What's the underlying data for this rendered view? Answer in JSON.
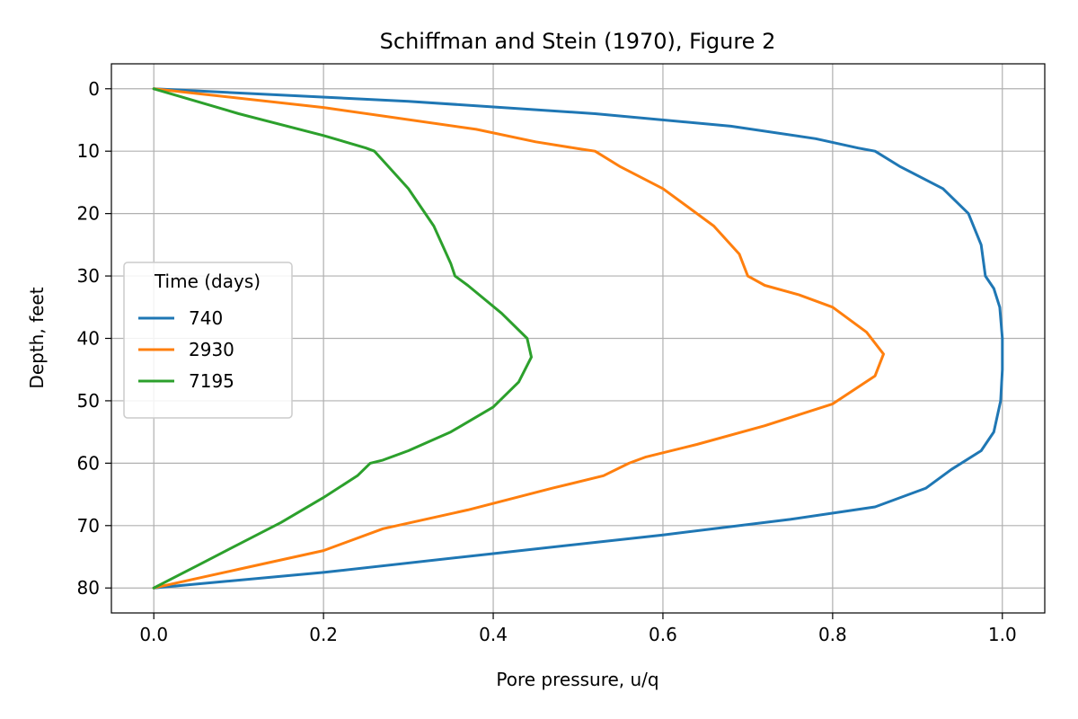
{
  "chart_data": {
    "type": "line",
    "title": "Schiffman and Stein (1970), Figure 2",
    "xlabel": "Pore pressure, u/q",
    "ylabel": "Depth, feet",
    "xlim": [
      -0.05,
      1.05
    ],
    "ylim": [
      84,
      -4
    ],
    "y_inverted": true,
    "grid": true,
    "xticks": [
      "0.0",
      "0.2",
      "0.4",
      "0.6",
      "0.8",
      "1.0"
    ],
    "yticks": [
      "0",
      "10",
      "20",
      "30",
      "40",
      "50",
      "60",
      "70",
      "80"
    ],
    "legend": {
      "title": "Time (days)",
      "placement": "center-left"
    },
    "series": [
      {
        "name": "740",
        "color": "#1f77b4",
        "points": [
          [
            0,
            0
          ],
          [
            0.3,
            2
          ],
          [
            0.52,
            4
          ],
          [
            0.68,
            6
          ],
          [
            0.78,
            8
          ],
          [
            0.83,
            9.5
          ],
          [
            0.85,
            10
          ],
          [
            0.88,
            12.5
          ],
          [
            0.93,
            16
          ],
          [
            0.96,
            20
          ],
          [
            0.975,
            25
          ],
          [
            0.98,
            30
          ],
          [
            0.99,
            32
          ],
          [
            0.997,
            35
          ],
          [
            1.0,
            40
          ],
          [
            1.0,
            45
          ],
          [
            0.998,
            50
          ],
          [
            0.99,
            55
          ],
          [
            0.975,
            58
          ],
          [
            0.94,
            61
          ],
          [
            0.91,
            64
          ],
          [
            0.85,
            67
          ],
          [
            0.75,
            69
          ],
          [
            0.6,
            71.5
          ],
          [
            0.4,
            74.5
          ],
          [
            0.2,
            77.5
          ],
          [
            0.08,
            79
          ],
          [
            0,
            80
          ]
        ]
      },
      {
        "name": "2930",
        "color": "#ff7f0e",
        "points": [
          [
            0,
            0
          ],
          [
            0.2,
            3
          ],
          [
            0.38,
            6.5
          ],
          [
            0.45,
            8.5
          ],
          [
            0.5,
            9.6
          ],
          [
            0.52,
            10
          ],
          [
            0.55,
            12.5
          ],
          [
            0.6,
            16
          ],
          [
            0.66,
            22
          ],
          [
            0.69,
            26.5
          ],
          [
            0.7,
            30
          ],
          [
            0.72,
            31.5
          ],
          [
            0.76,
            33
          ],
          [
            0.8,
            35
          ],
          [
            0.84,
            39
          ],
          [
            0.86,
            42.5
          ],
          [
            0.85,
            46
          ],
          [
            0.8,
            50.5
          ],
          [
            0.72,
            54
          ],
          [
            0.64,
            57
          ],
          [
            0.58,
            59
          ],
          [
            0.56,
            60
          ],
          [
            0.53,
            62
          ],
          [
            0.47,
            64
          ],
          [
            0.37,
            67.5
          ],
          [
            0.27,
            70.5
          ],
          [
            0.2,
            74
          ],
          [
            0.1,
            77
          ],
          [
            0,
            80
          ]
        ]
      },
      {
        "name": "7195",
        "color": "#2ca02c",
        "points": [
          [
            0,
            0
          ],
          [
            0.1,
            4
          ],
          [
            0.2,
            7.5
          ],
          [
            0.25,
            9.5
          ],
          [
            0.26,
            10
          ],
          [
            0.27,
            11.5
          ],
          [
            0.3,
            16
          ],
          [
            0.33,
            22
          ],
          [
            0.35,
            28
          ],
          [
            0.355,
            30
          ],
          [
            0.37,
            31.5
          ],
          [
            0.41,
            36
          ],
          [
            0.44,
            40
          ],
          [
            0.445,
            43
          ],
          [
            0.43,
            47
          ],
          [
            0.4,
            51
          ],
          [
            0.35,
            55
          ],
          [
            0.3,
            58
          ],
          [
            0.27,
            59.5
          ],
          [
            0.255,
            60
          ],
          [
            0.24,
            62
          ],
          [
            0.2,
            65.5
          ],
          [
            0.15,
            69.5
          ],
          [
            0.1,
            73
          ],
          [
            0.05,
            76.5
          ],
          [
            0,
            80
          ]
        ]
      }
    ]
  }
}
